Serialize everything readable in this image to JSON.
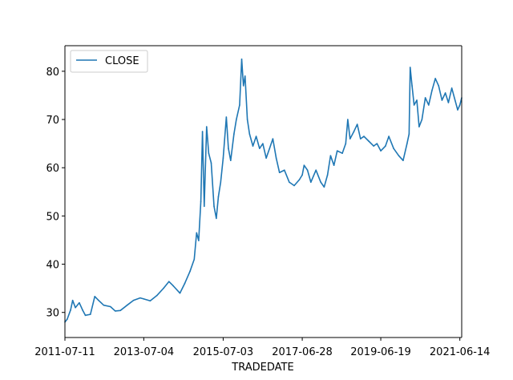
{
  "chart_data": {
    "type": "line",
    "title": "",
    "xlabel": "TRADEDATE",
    "ylabel": "",
    "x_tick_labels": [
      "2011-07-11",
      "2013-07-04",
      "2015-07-03",
      "2017-06-28",
      "2019-06-19",
      "2021-06-14"
    ],
    "y_ticks": [
      30,
      40,
      50,
      60,
      70,
      80
    ],
    "ylim": [
      24.8,
      85.3
    ],
    "xlim": [
      "2011-07-11",
      "2021-07-01"
    ],
    "grid": false,
    "legend": {
      "placement": "top-left",
      "entries": [
        "CLOSE"
      ]
    },
    "colors": {
      "series": "#1f77b4",
      "axes": "#000000"
    },
    "series": [
      {
        "name": "CLOSE",
        "points": [
          [
            "2011-07-11",
            28.0
          ],
          [
            "2011-08-01",
            28.6
          ],
          [
            "2011-09-01",
            30.5
          ],
          [
            "2011-09-20",
            32.5
          ],
          [
            "2011-10-15",
            31.0
          ],
          [
            "2011-11-20",
            32.0
          ],
          [
            "2011-12-20",
            30.5
          ],
          [
            "2012-01-15",
            29.4
          ],
          [
            "2012-03-01",
            29.6
          ],
          [
            "2012-04-10",
            33.3
          ],
          [
            "2012-05-15",
            32.5
          ],
          [
            "2012-07-01",
            31.5
          ],
          [
            "2012-09-01",
            31.2
          ],
          [
            "2012-10-15",
            30.3
          ],
          [
            "2012-12-01",
            30.4
          ],
          [
            "2013-02-01",
            31.5
          ],
          [
            "2013-04-01",
            32.5
          ],
          [
            "2013-06-01",
            33.0
          ],
          [
            "2013-07-04",
            32.8
          ],
          [
            "2013-09-01",
            32.4
          ],
          [
            "2013-11-01",
            33.5
          ],
          [
            "2014-01-01",
            35.0
          ],
          [
            "2014-02-20",
            36.4
          ],
          [
            "2014-04-01",
            35.5
          ],
          [
            "2014-06-01",
            34.0
          ],
          [
            "2014-07-15",
            36.0
          ],
          [
            "2014-09-01",
            38.5
          ],
          [
            "2014-10-10",
            41.0
          ],
          [
            "2014-11-01",
            46.5
          ],
          [
            "2014-11-20",
            44.9
          ],
          [
            "2014-12-10",
            53.0
          ],
          [
            "2014-12-25",
            67.5
          ],
          [
            "2015-01-10",
            52.0
          ],
          [
            "2015-02-01",
            68.5
          ],
          [
            "2015-02-20",
            63.0
          ],
          [
            "2015-03-15",
            61.0
          ],
          [
            "2015-04-10",
            52.0
          ],
          [
            "2015-05-01",
            49.5
          ],
          [
            "2015-05-20",
            54.0
          ],
          [
            "2015-06-10",
            57.0
          ],
          [
            "2015-07-03",
            62.0
          ],
          [
            "2015-08-01",
            70.5
          ],
          [
            "2015-08-20",
            64.0
          ],
          [
            "2015-09-10",
            61.5
          ],
          [
            "2015-10-10",
            67.0
          ],
          [
            "2015-11-01",
            70.0
          ],
          [
            "2015-12-01",
            73.0
          ],
          [
            "2015-12-20",
            82.5
          ],
          [
            "2016-01-05",
            77.0
          ],
          [
            "2016-01-20",
            79.0
          ],
          [
            "2016-02-10",
            70.0
          ],
          [
            "2016-03-01",
            67.0
          ],
          [
            "2016-04-01",
            64.5
          ],
          [
            "2016-05-01",
            66.5
          ],
          [
            "2016-06-01",
            64.0
          ],
          [
            "2016-07-01",
            65.0
          ],
          [
            "2016-08-01",
            62.0
          ],
          [
            "2016-09-01",
            64.0
          ],
          [
            "2016-10-01",
            66.0
          ],
          [
            "2016-11-01",
            62.0
          ],
          [
            "2016-12-01",
            59.0
          ],
          [
            "2017-01-15",
            59.5
          ],
          [
            "2017-03-01",
            57.0
          ],
          [
            "2017-04-15",
            56.3
          ],
          [
            "2017-06-01",
            57.5
          ],
          [
            "2017-06-28",
            58.5
          ],
          [
            "2017-07-15",
            60.5
          ],
          [
            "2017-08-15",
            59.5
          ],
          [
            "2017-09-15",
            57.0
          ],
          [
            "2017-11-01",
            59.5
          ],
          [
            "2017-12-15",
            57.0
          ],
          [
            "2018-01-15",
            56.0
          ],
          [
            "2018-02-15",
            58.5
          ],
          [
            "2018-03-15",
            62.5
          ],
          [
            "2018-04-15",
            60.5
          ],
          [
            "2018-05-15",
            63.5
          ],
          [
            "2018-07-01",
            63.0
          ],
          [
            "2018-08-01",
            65.0
          ],
          [
            "2018-08-20",
            70.0
          ],
          [
            "2018-09-10",
            66.0
          ],
          [
            "2018-10-15",
            67.5
          ],
          [
            "2018-11-15",
            69.0
          ],
          [
            "2018-12-15",
            66.0
          ],
          [
            "2019-01-15",
            66.5
          ],
          [
            "2019-03-01",
            65.5
          ],
          [
            "2019-04-15",
            64.5
          ],
          [
            "2019-05-15",
            65.0
          ],
          [
            "2019-06-19",
            63.5
          ],
          [
            "2019-08-01",
            64.5
          ],
          [
            "2019-09-01",
            66.5
          ],
          [
            "2019-10-15",
            64.0
          ],
          [
            "2019-12-01",
            62.5
          ],
          [
            "2020-01-10",
            61.5
          ],
          [
            "2020-02-15",
            65.0
          ],
          [
            "2020-03-05",
            67.0
          ],
          [
            "2020-03-15",
            80.8
          ],
          [
            "2020-04-01",
            77.0
          ],
          [
            "2020-04-20",
            73.0
          ],
          [
            "2020-05-15",
            74.0
          ],
          [
            "2020-06-05",
            68.5
          ],
          [
            "2020-07-01",
            70.0
          ],
          [
            "2020-08-01",
            74.5
          ],
          [
            "2020-09-01",
            73.0
          ],
          [
            "2020-10-01",
            76.0
          ],
          [
            "2020-11-01",
            78.5
          ],
          [
            "2020-12-01",
            77.0
          ],
          [
            "2021-01-01",
            74.0
          ],
          [
            "2021-02-01",
            75.5
          ],
          [
            "2021-03-01",
            73.5
          ],
          [
            "2021-04-01",
            76.5
          ],
          [
            "2021-05-01",
            74.0
          ],
          [
            "2021-05-25",
            72.0
          ],
          [
            "2021-06-14",
            73.0
          ],
          [
            "2021-07-01",
            74.5
          ]
        ]
      }
    ]
  }
}
